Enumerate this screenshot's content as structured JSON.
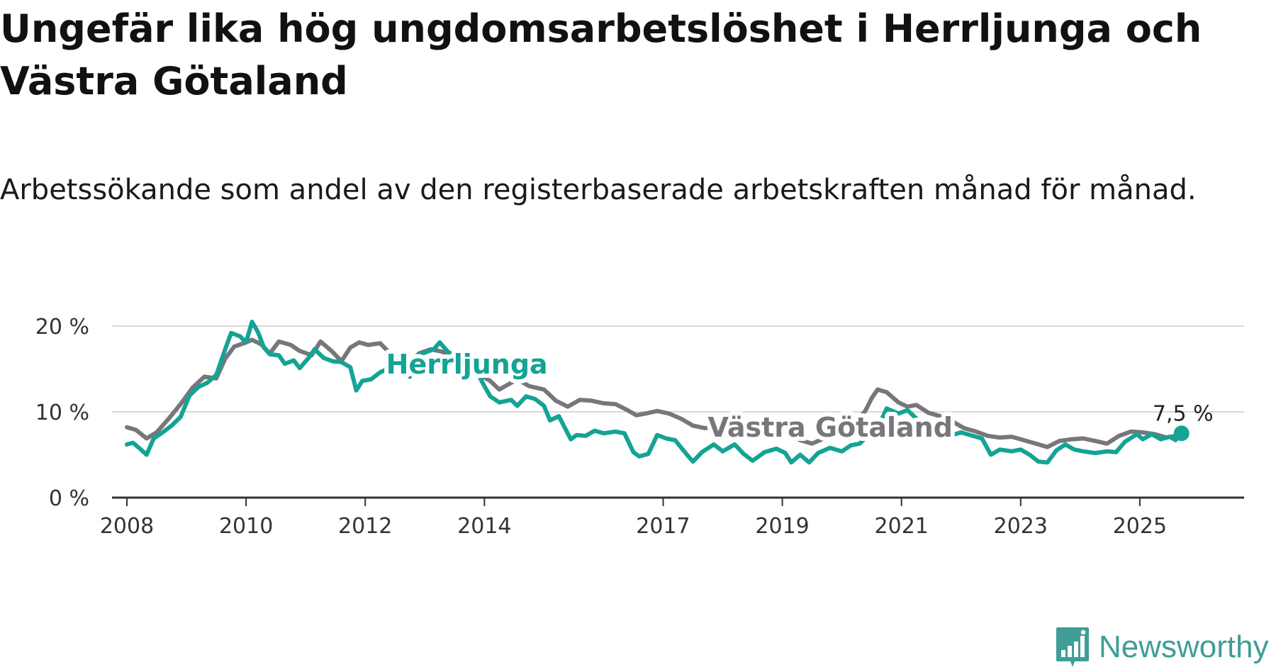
{
  "title": "Ungefär lika hög ungdomsarbetslöshet i Herrljunga och Västra Götaland",
  "subtitle": "Arbetssökande som andel av den registerbaserade arbetskraften månad för månad.",
  "brand": {
    "name": "Newsworthy",
    "icon": "newsworthy-logo-icon",
    "color": "#3e9e95"
  },
  "colors": {
    "herrljunga": "#14a394",
    "vastra": "#77767a",
    "grid": "#d9d9d9",
    "axis": "#333333"
  },
  "chart_data": {
    "type": "line",
    "title": "Ungefär lika hög ungdomsarbetslöshet i Herrljunga och Västra Götaland",
    "xlabel": "",
    "ylabel": "",
    "xlim": [
      2007.75,
      2026.75
    ],
    "ylim": [
      0,
      20
    ],
    "x_ticks": [
      2008,
      2010,
      2012,
      2014,
      2017,
      2019,
      2021,
      2023,
      2025
    ],
    "x_tick_labels": [
      "2008",
      "2010",
      "2012",
      "2014",
      "2017",
      "2019",
      "2021",
      "2023",
      "2025"
    ],
    "y_ticks": [
      0,
      10,
      20
    ],
    "y_tick_labels": [
      "0 %",
      "10 %",
      "20 %"
    ],
    "grid": true,
    "series": [
      {
        "name": "Västra Götaland",
        "label": "Västra Götaland",
        "color": "#77767a",
        "points": [
          [
            2008.0,
            8.2
          ],
          [
            2008.15,
            7.9
          ],
          [
            2008.33,
            6.9
          ],
          [
            2008.5,
            7.6
          ],
          [
            2008.7,
            9.2
          ],
          [
            2008.9,
            10.9
          ],
          [
            2009.1,
            12.8
          ],
          [
            2009.3,
            14.1
          ],
          [
            2009.5,
            13.9
          ],
          [
            2009.65,
            16.2
          ],
          [
            2009.8,
            17.6
          ],
          [
            2010.0,
            18.1
          ],
          [
            2010.1,
            18.4
          ],
          [
            2010.25,
            17.9
          ],
          [
            2010.4,
            16.8
          ],
          [
            2010.55,
            18.2
          ],
          [
            2010.75,
            17.8
          ],
          [
            2010.9,
            17.1
          ],
          [
            2011.1,
            16.6
          ],
          [
            2011.25,
            18.2
          ],
          [
            2011.45,
            17.0
          ],
          [
            2011.6,
            15.9
          ],
          [
            2011.75,
            17.5
          ],
          [
            2011.9,
            18.1
          ],
          [
            2012.05,
            17.8
          ],
          [
            2012.25,
            18.0
          ],
          [
            2012.45,
            16.6
          ],
          [
            2012.6,
            15.9
          ],
          [
            2012.75,
            15.6
          ],
          [
            2012.9,
            16.8
          ],
          [
            2013.1,
            17.3
          ],
          [
            2013.3,
            17.0
          ],
          [
            2013.5,
            16.2
          ],
          [
            2013.7,
            15.6
          ],
          [
            2013.9,
            14.4
          ],
          [
            2014.1,
            13.6
          ],
          [
            2014.25,
            12.6
          ],
          [
            2014.4,
            13.2
          ],
          [
            2014.55,
            13.8
          ],
          [
            2014.75,
            13.0
          ],
          [
            2015.0,
            12.6
          ],
          [
            2015.2,
            11.3
          ],
          [
            2015.4,
            10.6
          ],
          [
            2015.6,
            11.4
          ],
          [
            2015.8,
            11.3
          ],
          [
            2016.0,
            11.0
          ],
          [
            2016.2,
            10.9
          ],
          [
            2016.4,
            10.2
          ],
          [
            2016.55,
            9.6
          ],
          [
            2016.7,
            9.8
          ],
          [
            2016.9,
            10.1
          ],
          [
            2017.1,
            9.8
          ],
          [
            2017.3,
            9.2
          ],
          [
            2017.5,
            8.4
          ],
          [
            2017.7,
            8.1
          ],
          [
            2017.9,
            8.4
          ],
          [
            2018.1,
            8.0
          ],
          [
            2018.3,
            7.9
          ],
          [
            2018.5,
            7.6
          ],
          [
            2018.7,
            7.3
          ],
          [
            2018.9,
            7.2
          ],
          [
            2019.1,
            7.4
          ],
          [
            2019.3,
            6.7
          ],
          [
            2019.5,
            6.3
          ],
          [
            2019.7,
            6.9
          ],
          [
            2019.9,
            7.2
          ],
          [
            2020.1,
            7.9
          ],
          [
            2020.25,
            8.9
          ],
          [
            2020.4,
            10.2
          ],
          [
            2020.5,
            11.6
          ],
          [
            2020.6,
            12.6
          ],
          [
            2020.75,
            12.3
          ],
          [
            2020.95,
            11.1
          ],
          [
            2021.1,
            10.6
          ],
          [
            2021.25,
            10.8
          ],
          [
            2021.45,
            9.9
          ],
          [
            2021.65,
            9.5
          ],
          [
            2021.85,
            8.9
          ],
          [
            2022.05,
            8.1
          ],
          [
            2022.25,
            7.7
          ],
          [
            2022.45,
            7.2
          ],
          [
            2022.65,
            7.0
          ],
          [
            2022.85,
            7.1
          ],
          [
            2023.05,
            6.7
          ],
          [
            2023.25,
            6.3
          ],
          [
            2023.45,
            5.9
          ],
          [
            2023.65,
            6.6
          ],
          [
            2023.85,
            6.8
          ],
          [
            2024.05,
            6.9
          ],
          [
            2024.25,
            6.6
          ],
          [
            2024.45,
            6.3
          ],
          [
            2024.65,
            7.2
          ],
          [
            2024.85,
            7.7
          ],
          [
            2025.05,
            7.6
          ],
          [
            2025.25,
            7.4
          ],
          [
            2025.45,
            7.0
          ],
          [
            2025.6,
            7.2
          ],
          [
            2025.7,
            7.5
          ]
        ]
      },
      {
        "name": "Herrljunga",
        "label": "Herrljunga",
        "color": "#14a394",
        "points": [
          [
            2008.0,
            6.2
          ],
          [
            2008.1,
            6.4
          ],
          [
            2008.22,
            5.7
          ],
          [
            2008.33,
            5.0
          ],
          [
            2008.45,
            6.9
          ],
          [
            2008.6,
            7.6
          ],
          [
            2008.75,
            8.4
          ],
          [
            2008.9,
            9.4
          ],
          [
            2009.05,
            11.9
          ],
          [
            2009.2,
            12.9
          ],
          [
            2009.35,
            13.4
          ],
          [
            2009.5,
            14.3
          ],
          [
            2009.65,
            17.3
          ],
          [
            2009.75,
            19.2
          ],
          [
            2009.9,
            18.8
          ],
          [
            2010.0,
            18.1
          ],
          [
            2010.1,
            20.5
          ],
          [
            2010.2,
            19.3
          ],
          [
            2010.3,
            17.5
          ],
          [
            2010.4,
            16.7
          ],
          [
            2010.55,
            16.6
          ],
          [
            2010.65,
            15.6
          ],
          [
            2010.8,
            16.0
          ],
          [
            2010.9,
            15.1
          ],
          [
            2011.05,
            16.3
          ],
          [
            2011.15,
            17.3
          ],
          [
            2011.3,
            16.3
          ],
          [
            2011.45,
            15.9
          ],
          [
            2011.6,
            15.8
          ],
          [
            2011.75,
            15.2
          ],
          [
            2011.85,
            12.5
          ],
          [
            2011.95,
            13.6
          ],
          [
            2012.1,
            13.8
          ],
          [
            2012.25,
            14.6
          ],
          [
            2012.4,
            15.1
          ],
          [
            2012.55,
            14.8
          ],
          [
            2012.75,
            14.1
          ],
          [
            2012.85,
            16.5
          ],
          [
            2013.0,
            16.9
          ],
          [
            2013.15,
            17.3
          ],
          [
            2013.25,
            18.1
          ],
          [
            2013.4,
            16.9
          ],
          [
            2013.55,
            16.6
          ],
          [
            2013.75,
            15.2
          ],
          [
            2013.9,
            14.3
          ],
          [
            2014.0,
            13.0
          ],
          [
            2014.1,
            11.8
          ],
          [
            2014.25,
            11.1
          ],
          [
            2014.45,
            11.4
          ],
          [
            2014.55,
            10.7
          ],
          [
            2014.7,
            11.8
          ],
          [
            2014.85,
            11.5
          ],
          [
            2015.0,
            10.7
          ],
          [
            2015.1,
            9.0
          ],
          [
            2015.25,
            9.5
          ],
          [
            2015.45,
            6.8
          ],
          [
            2015.55,
            7.3
          ],
          [
            2015.7,
            7.2
          ],
          [
            2015.85,
            7.8
          ],
          [
            2016.0,
            7.5
          ],
          [
            2016.2,
            7.7
          ],
          [
            2016.35,
            7.5
          ],
          [
            2016.5,
            5.3
          ],
          [
            2016.6,
            4.8
          ],
          [
            2016.75,
            5.1
          ],
          [
            2016.9,
            7.3
          ],
          [
            2017.05,
            6.9
          ],
          [
            2017.2,
            6.7
          ],
          [
            2017.4,
            5.0
          ],
          [
            2017.5,
            4.2
          ],
          [
            2017.65,
            5.3
          ],
          [
            2017.85,
            6.2
          ],
          [
            2018.0,
            5.4
          ],
          [
            2018.2,
            6.2
          ],
          [
            2018.35,
            5.1
          ],
          [
            2018.5,
            4.3
          ],
          [
            2018.7,
            5.3
          ],
          [
            2018.9,
            5.7
          ],
          [
            2019.05,
            5.2
          ],
          [
            2019.15,
            4.1
          ],
          [
            2019.3,
            5.0
          ],
          [
            2019.45,
            4.1
          ],
          [
            2019.6,
            5.2
          ],
          [
            2019.8,
            5.8
          ],
          [
            2020.0,
            5.4
          ],
          [
            2020.15,
            6.1
          ],
          [
            2020.3,
            6.3
          ],
          [
            2020.45,
            7.4
          ],
          [
            2020.6,
            8.1
          ],
          [
            2020.75,
            10.4
          ],
          [
            2020.95,
            9.8
          ],
          [
            2021.1,
            10.2
          ],
          [
            2021.3,
            8.9
          ],
          [
            2021.45,
            8.4
          ],
          [
            2021.65,
            7.9
          ],
          [
            2021.85,
            7.3
          ],
          [
            2022.0,
            7.6
          ],
          [
            2022.15,
            7.3
          ],
          [
            2022.35,
            6.9
          ],
          [
            2022.5,
            5.0
          ],
          [
            2022.65,
            5.6
          ],
          [
            2022.85,
            5.4
          ],
          [
            2023.0,
            5.6
          ],
          [
            2023.15,
            5.0
          ],
          [
            2023.3,
            4.2
          ],
          [
            2023.45,
            4.1
          ],
          [
            2023.6,
            5.5
          ],
          [
            2023.75,
            6.2
          ],
          [
            2023.9,
            5.6
          ],
          [
            2024.05,
            5.4
          ],
          [
            2024.25,
            5.2
          ],
          [
            2024.45,
            5.4
          ],
          [
            2024.6,
            5.3
          ],
          [
            2024.75,
            6.5
          ],
          [
            2024.95,
            7.4
          ],
          [
            2025.05,
            6.8
          ],
          [
            2025.2,
            7.4
          ],
          [
            2025.35,
            6.8
          ],
          [
            2025.5,
            7.1
          ],
          [
            2025.6,
            6.7
          ],
          [
            2025.7,
            7.5
          ]
        ]
      }
    ],
    "end_label": {
      "series": "Herrljunga",
      "x": 2025.7,
      "y": 7.5,
      "text": "7,5 %"
    }
  }
}
